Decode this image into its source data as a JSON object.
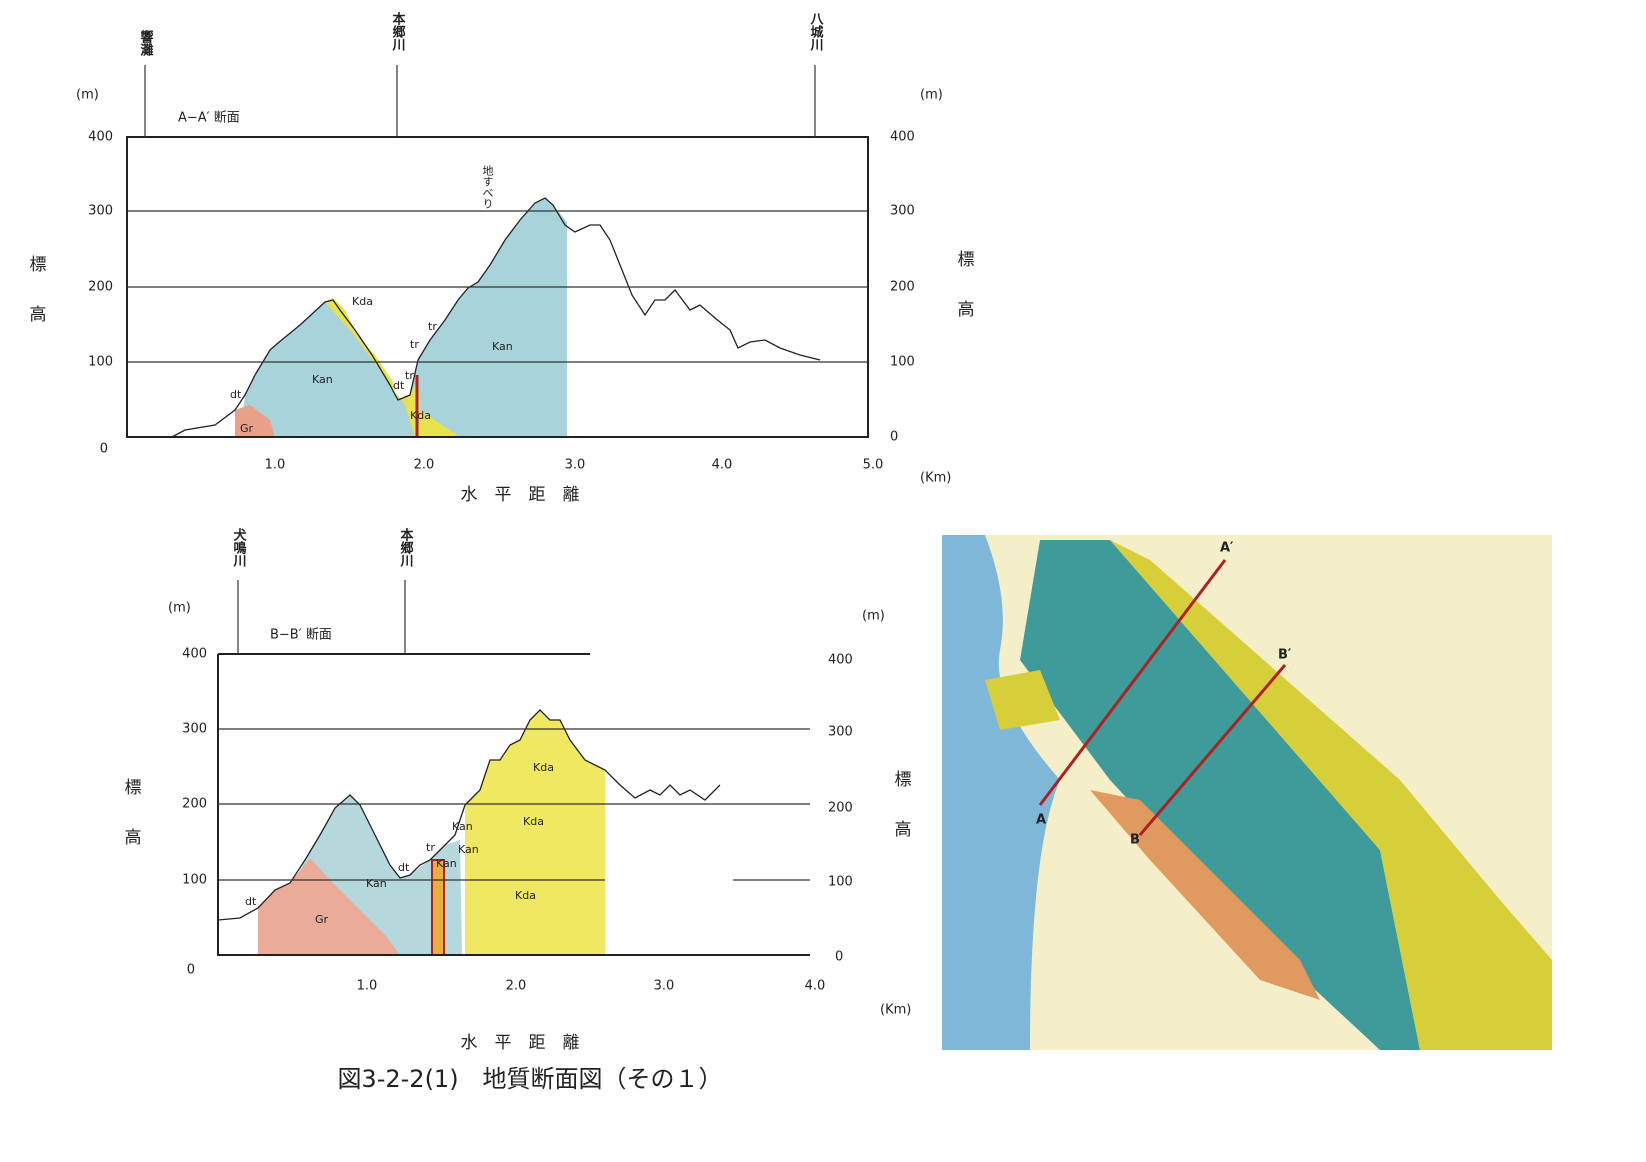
{
  "section_a": {
    "title": "A−A′ 断面",
    "unit_left": "(m)",
    "unit_right": "(m)",
    "y_axis_label": [
      "標",
      "高"
    ],
    "y_ticks": [
      "400",
      "300",
      "200",
      "100",
      "0"
    ],
    "x_ticks": [
      "1.0",
      "2.0",
      "3.0",
      "4.0",
      "5.0"
    ],
    "x_unit": "(Km)",
    "x_axis_label": "水　平　距　離",
    "rivers": [
      "響灘",
      "本郷川",
      "八城川"
    ],
    "labels": [
      "Kda",
      "Kan",
      "Kan",
      "dt",
      "tr",
      "tr",
      "tr",
      "dt",
      "Kda",
      "Gr",
      "地すべり"
    ]
  },
  "section_b": {
    "title": "B−B′ 断面",
    "unit_left": "(m)",
    "unit_right": "(m)",
    "y_axis_label": [
      "標",
      "高"
    ],
    "y_ticks": [
      "400",
      "300",
      "200",
      "100",
      "0"
    ],
    "y_ticks_right": [
      "400",
      "300",
      "200",
      "100",
      "0"
    ],
    "x_ticks": [
      "1.0",
      "2.0",
      "3.0",
      "4.0"
    ],
    "x_unit": "(Km)",
    "x_axis_label": "水　平　距　離",
    "rivers": [
      "犬鳴川",
      "本郷川"
    ],
    "labels": [
      "Kda",
      "Kda",
      "Kda",
      "Kan",
      "Kan",
      "Kan",
      "Kan",
      "Gr",
      "dt",
      "dt",
      "tr"
    ]
  },
  "map": {
    "labels": [
      "A",
      "A′",
      "B",
      "B′"
    ]
  },
  "caption": "図3-2-2(1)　地質断面図（その１）"
}
